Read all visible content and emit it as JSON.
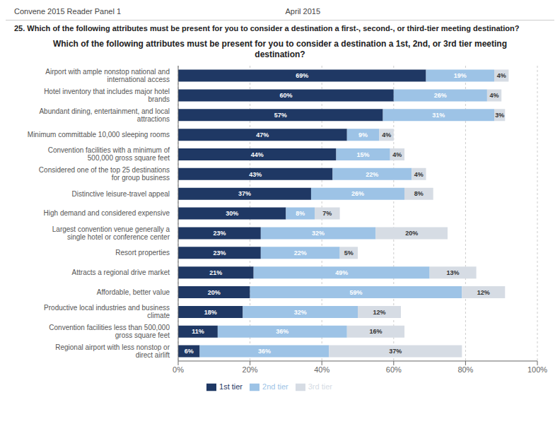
{
  "chart_data": {
    "type": "bar",
    "orientation": "horizontal",
    "stacked": true,
    "title": "Which of the following attributes must be present for you to consider a destination a 1st, 2nd, or 3rd tier meeting destination?",
    "subtitle": "25. Which of the following attributes must be present for you to consider a destination a first-, second-, or third-tier meeting destination?",
    "annotations": [
      "Convene 2015 Reader Panel 1",
      "April 2015"
    ],
    "categories": [
      "Airport with ample nonstop national and international access",
      "Hotel inventory that includes major hotel brands",
      "Abundant dining, entertainment, and local attractions",
      "Minimum committable 10,000 sleeping rooms",
      "Convention facilities with a minimum of 500,000 gross square feet",
      "Considered one of the top 25 destinations for group business",
      "Distinctive leisure-travel appeal",
      "High demand and considered expensive",
      "Largest convention venue generally a single hotel or conference center",
      "Resort properties",
      "Attracts a regional drive market",
      "Affordable, better value",
      "Productive local industries and business climate",
      "Convention facilities less than 500,000 gross square feet",
      "Regional airport with less nonstop or direct airlift"
    ],
    "series": [
      {
        "name": "1st tier",
        "color": "#1F3864",
        "values": [
          69,
          60,
          57,
          47,
          44,
          43,
          37,
          30,
          23,
          23,
          21,
          20,
          18,
          11,
          6
        ],
        "value_labels": [
          "69%",
          "60%",
          "57%",
          "47%",
          "44%",
          "43%",
          "37%",
          "30%",
          "23%",
          "23%",
          "21%",
          "20%",
          "18%",
          "11%",
          "6%"
        ]
      },
      {
        "name": "2nd tier",
        "color": "#9DC3E6",
        "values": [
          19,
          26,
          31,
          9,
          15,
          22,
          26,
          8,
          32,
          22,
          49,
          59,
          32,
          36,
          36
        ],
        "value_labels": [
          "19%",
          "26%",
          "31%",
          "9%",
          "15%",
          "22%",
          "26%",
          "8%",
          "32%",
          "22%",
          "49%",
          "59%",
          "32%",
          "36%",
          "36%"
        ]
      },
      {
        "name": "3rd tier",
        "color": "#D6DCE4",
        "values": [
          4,
          4,
          3,
          4,
          4,
          4,
          8,
          7,
          20,
          5,
          13,
          12,
          12,
          16,
          37
        ],
        "value_labels": [
          "4%",
          "4%",
          "3%",
          "4%",
          "4%",
          "4%",
          "8%",
          "7%",
          "20%",
          "5%",
          "13%",
          "12%",
          "12%",
          "16%",
          "37%"
        ]
      }
    ],
    "xlim": [
      0,
      100
    ],
    "xticks": [
      {
        "value": 0,
        "label": "0%"
      },
      {
        "value": 20,
        "label": "20%"
      },
      {
        "value": 40,
        "label": "40%"
      },
      {
        "value": 60,
        "label": "60%"
      },
      {
        "value": 80,
        "label": "80%"
      },
      {
        "value": 100,
        "label": "100%"
      }
    ],
    "grid": true,
    "legend": "bottom",
    "data_labels": true
  }
}
